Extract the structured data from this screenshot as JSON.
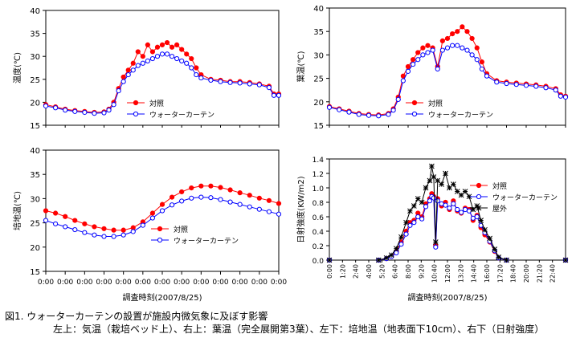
{
  "caption": {
    "line1": "図1. ウォーターカーテンの設置が施設内微気象に及ぼす影響",
    "line2": "左上：気温（栽培ベッド上）、右上：葉温（完全展開第3葉）、左下：培地温（地表面下10cm）、右下（日射強度）"
  },
  "colors": {
    "control": "#ff0000",
    "water_curtain": "#0000ff",
    "outdoor": "#000000",
    "plot_bg": "#ffffff"
  },
  "chart_data": [
    {
      "type": "line",
      "id": "air-temp",
      "ylabel": "温度(℃)",
      "ylim": [
        15,
        40
      ],
      "yticks": [
        15,
        20,
        25,
        30,
        35,
        40
      ],
      "xlim": [
        0,
        24
      ],
      "legend": "inside-lower-center",
      "series": [
        {
          "name": "対照",
          "color": "#ff0000",
          "marker": "filled-circle",
          "x": [
            0,
            1,
            2,
            3,
            4,
            5,
            6,
            6.5,
            7,
            7.5,
            8,
            8.5,
            9,
            9.5,
            10,
            10.5,
            11,
            11.5,
            12,
            12.5,
            13,
            13.5,
            14,
            14.5,
            15,
            15.5,
            16,
            17,
            18,
            19,
            20,
            21,
            22,
            23,
            23.5,
            24
          ],
          "y": [
            19.5,
            19.0,
            18.5,
            18.2,
            18.0,
            17.8,
            17.9,
            18.5,
            20.0,
            23.0,
            25.5,
            27.0,
            28.5,
            31.0,
            30.0,
            32.5,
            31.0,
            32.0,
            32.5,
            33.0,
            32.0,
            32.5,
            31.5,
            30.5,
            29.5,
            27.5,
            26.0,
            25.0,
            24.8,
            24.5,
            24.5,
            24.3,
            24.0,
            23.5,
            21.8,
            21.8
          ]
        },
        {
          "name": "ウォーターカーテン",
          "color": "#0000ff",
          "marker": "open-circle",
          "x": [
            0,
            1,
            2,
            3,
            4,
            5,
            6,
            6.5,
            7,
            7.5,
            8,
            8.5,
            9,
            9.5,
            10,
            10.5,
            11,
            11.5,
            12,
            12.5,
            13,
            13.5,
            14,
            14.5,
            15,
            15.5,
            16,
            17,
            18,
            19,
            20,
            21,
            22,
            23,
            23.5,
            24
          ],
          "y": [
            19.2,
            18.8,
            18.3,
            18.0,
            17.8,
            17.6,
            17.7,
            18.3,
            19.5,
            22.5,
            24.5,
            26.0,
            27.0,
            28.0,
            28.5,
            29.0,
            29.5,
            30.0,
            30.5,
            30.5,
            30.0,
            29.5,
            29.0,
            28.5,
            27.5,
            26.0,
            25.3,
            24.8,
            24.5,
            24.3,
            24.2,
            24.0,
            23.8,
            23.2,
            21.5,
            21.5
          ]
        }
      ]
    },
    {
      "type": "line",
      "id": "leaf-temp",
      "ylabel": "葉温(℃)",
      "ylim": [
        15,
        40
      ],
      "yticks": [
        15,
        20,
        25,
        30,
        35,
        40
      ],
      "xlim": [
        0,
        24
      ],
      "legend": "inside-lower-center",
      "series": [
        {
          "name": "対照",
          "color": "#ff0000",
          "marker": "filled-circle",
          "x": [
            0,
            1,
            2,
            3,
            4,
            5,
            6,
            6.5,
            7,
            7.5,
            8,
            8.5,
            9,
            9.5,
            10,
            10.5,
            11,
            11.5,
            12,
            12.5,
            13,
            13.5,
            14,
            14.5,
            15,
            15.5,
            16,
            17,
            18,
            19,
            20,
            21,
            22,
            23,
            23.5,
            24
          ],
          "y": [
            19.0,
            18.5,
            18.0,
            17.5,
            17.3,
            17.2,
            17.5,
            18.5,
            21.0,
            25.5,
            27.5,
            29.0,
            30.5,
            31.5,
            32.0,
            31.5,
            27.5,
            33.0,
            33.5,
            34.5,
            35.0,
            36.0,
            35.0,
            33.5,
            31.5,
            28.5,
            26.0,
            24.5,
            24.2,
            24.0,
            23.8,
            23.6,
            23.3,
            22.8,
            21.5,
            21.2
          ]
        },
        {
          "name": "ウォーターカーテン",
          "color": "#0000ff",
          "marker": "open-circle",
          "x": [
            0,
            1,
            2,
            3,
            4,
            5,
            6,
            6.5,
            7,
            7.5,
            8,
            8.5,
            9,
            9.5,
            10,
            10.5,
            11,
            11.5,
            12,
            12.5,
            13,
            13.5,
            14,
            14.5,
            15,
            15.5,
            16,
            17,
            18,
            19,
            20,
            21,
            22,
            23,
            23.5,
            24
          ],
          "y": [
            18.8,
            18.3,
            17.8,
            17.3,
            17.1,
            17.0,
            17.3,
            18.2,
            20.5,
            24.5,
            26.5,
            28.0,
            29.0,
            30.0,
            30.5,
            31.0,
            27.0,
            31.0,
            31.5,
            32.0,
            32.0,
            31.5,
            31.0,
            30.0,
            29.0,
            27.0,
            25.5,
            24.2,
            23.9,
            23.7,
            23.5,
            23.3,
            23.0,
            22.5,
            21.2,
            21.0
          ]
        }
      ]
    },
    {
      "type": "line",
      "id": "medium-temp",
      "ylabel": "培地温(℃)",
      "ylim": [
        15,
        40
      ],
      "yticks": [
        15,
        20,
        25,
        30,
        35,
        40
      ],
      "xlim": [
        0,
        24
      ],
      "xticks": [
        "0:00",
        "0:00",
        "0:00",
        "0:00",
        "0:00",
        "0:00",
        "0:00",
        "0:00",
        "0:00",
        "0:00",
        "0:00",
        "0:00",
        "0:00"
      ],
      "xlabel": "調査時刻(2007/8/25)",
      "legend": "inside-lower-right",
      "series": [
        {
          "name": "対照",
          "color": "#ff0000",
          "marker": "filled-circle",
          "x": [
            0,
            1,
            2,
            3,
            4,
            5,
            6,
            7,
            8,
            9,
            10,
            11,
            12,
            13,
            14,
            15,
            16,
            17,
            18,
            19,
            20,
            21,
            22,
            23,
            24
          ],
          "y": [
            27.5,
            27.0,
            26.3,
            25.5,
            24.8,
            24.2,
            23.8,
            23.5,
            23.5,
            24.0,
            25.2,
            27.0,
            28.8,
            30.3,
            31.4,
            32.2,
            32.6,
            32.6,
            32.3,
            31.8,
            31.2,
            30.7,
            30.1,
            29.6,
            29.0
          ]
        },
        {
          "name": "ウォーターカーテン",
          "color": "#0000ff",
          "marker": "open-circle",
          "x": [
            0,
            1,
            2,
            3,
            4,
            5,
            6,
            7,
            8,
            9,
            10,
            11,
            12,
            13,
            14,
            15,
            16,
            17,
            18,
            19,
            20,
            21,
            22,
            23,
            24
          ],
          "y": [
            25.5,
            24.8,
            24.2,
            23.6,
            23.0,
            22.5,
            22.2,
            22.2,
            22.5,
            23.2,
            24.5,
            26.0,
            27.5,
            28.7,
            29.5,
            30.1,
            30.3,
            30.2,
            29.8,
            29.3,
            28.8,
            28.3,
            27.8,
            27.3,
            26.8
          ]
        }
      ]
    },
    {
      "type": "line",
      "id": "solar-radiation",
      "ylabel": "日射強度(KW/m2)",
      "ylim": [
        0,
        1.4
      ],
      "yticks": [
        0,
        0.2,
        0.4,
        0.6,
        0.8,
        1.0,
        1.2,
        1.4
      ],
      "xlim": [
        0,
        24
      ],
      "xticks": [
        "0:00",
        "1:20",
        "2:40",
        "4:00",
        "5:20",
        "6:40",
        "8:00",
        "9:20",
        "10:40",
        "12:00",
        "13:20",
        "14:40",
        "16:00",
        "17:20",
        "18:40",
        "20:00",
        "21:20",
        "22:40"
      ],
      "xlabel": "調査時刻(2007/8/25)",
      "legend": "inside-upper-right",
      "series": [
        {
          "name": "対照",
          "color": "#ff0000",
          "marker": "filled-circle",
          "x": [
            0,
            5,
            5.8,
            6.3,
            6.8,
            7.3,
            7.8,
            8.2,
            8.6,
            9.0,
            9.4,
            9.8,
            10.2,
            10.4,
            10.6,
            10.8,
            11.0,
            11.4,
            11.8,
            12.2,
            12.6,
            13.0,
            13.4,
            13.8,
            14.2,
            14.6,
            15.0,
            15.4,
            15.8,
            16.3,
            16.8,
            17.2,
            18,
            24
          ],
          "y": [
            0,
            0,
            0.02,
            0.05,
            0.12,
            0.25,
            0.4,
            0.52,
            0.55,
            0.65,
            0.6,
            0.78,
            0.85,
            0.92,
            0.88,
            0.2,
            0.85,
            0.75,
            0.8,
            0.7,
            0.82,
            0.68,
            0.65,
            0.72,
            0.7,
            0.55,
            0.62,
            0.45,
            0.35,
            0.25,
            0.12,
            0.03,
            0,
            0
          ]
        },
        {
          "name": "ウォーターカーテン",
          "color": "#0000ff",
          "marker": "open-circle",
          "x": [
            0,
            5,
            5.8,
            6.3,
            6.8,
            7.3,
            7.8,
            8.2,
            8.6,
            9.0,
            9.4,
            9.8,
            10.2,
            10.4,
            10.6,
            10.8,
            11.0,
            11.4,
            11.8,
            12.2,
            12.6,
            13.0,
            13.4,
            13.8,
            14.2,
            14.6,
            15.0,
            15.4,
            15.8,
            16.3,
            16.8,
            17.2,
            18,
            24
          ],
          "y": [
            0,
            0,
            0.02,
            0.05,
            0.1,
            0.22,
            0.36,
            0.48,
            0.52,
            0.6,
            0.57,
            0.74,
            0.82,
            0.88,
            0.86,
            0.18,
            0.82,
            0.78,
            0.76,
            0.72,
            0.78,
            0.7,
            0.66,
            0.7,
            0.68,
            0.58,
            0.6,
            0.48,
            0.38,
            0.26,
            0.13,
            0.03,
            0,
            0
          ]
        },
        {
          "name": "屋外",
          "color": "#000000",
          "marker": "asterisk",
          "x": [
            0,
            5,
            5.8,
            6.3,
            6.8,
            7.3,
            7.8,
            8.2,
            8.6,
            9.0,
            9.4,
            9.8,
            10.2,
            10.4,
            10.6,
            10.8,
            11.0,
            11.4,
            11.8,
            12.2,
            12.6,
            13.0,
            13.4,
            13.8,
            14.2,
            14.6,
            15.0,
            15.4,
            15.8,
            16.3,
            16.8,
            17.2,
            18,
            24
          ],
          "y": [
            0,
            0,
            0.03,
            0.07,
            0.16,
            0.32,
            0.52,
            0.68,
            0.75,
            0.85,
            0.8,
            1.0,
            1.1,
            1.3,
            1.15,
            0.25,
            1.1,
            1.05,
            1.2,
            1.0,
            1.05,
            0.95,
            0.9,
            0.95,
            0.88,
            0.7,
            0.75,
            0.55,
            0.42,
            0.3,
            0.15,
            0.04,
            0,
            0
          ]
        }
      ]
    }
  ]
}
